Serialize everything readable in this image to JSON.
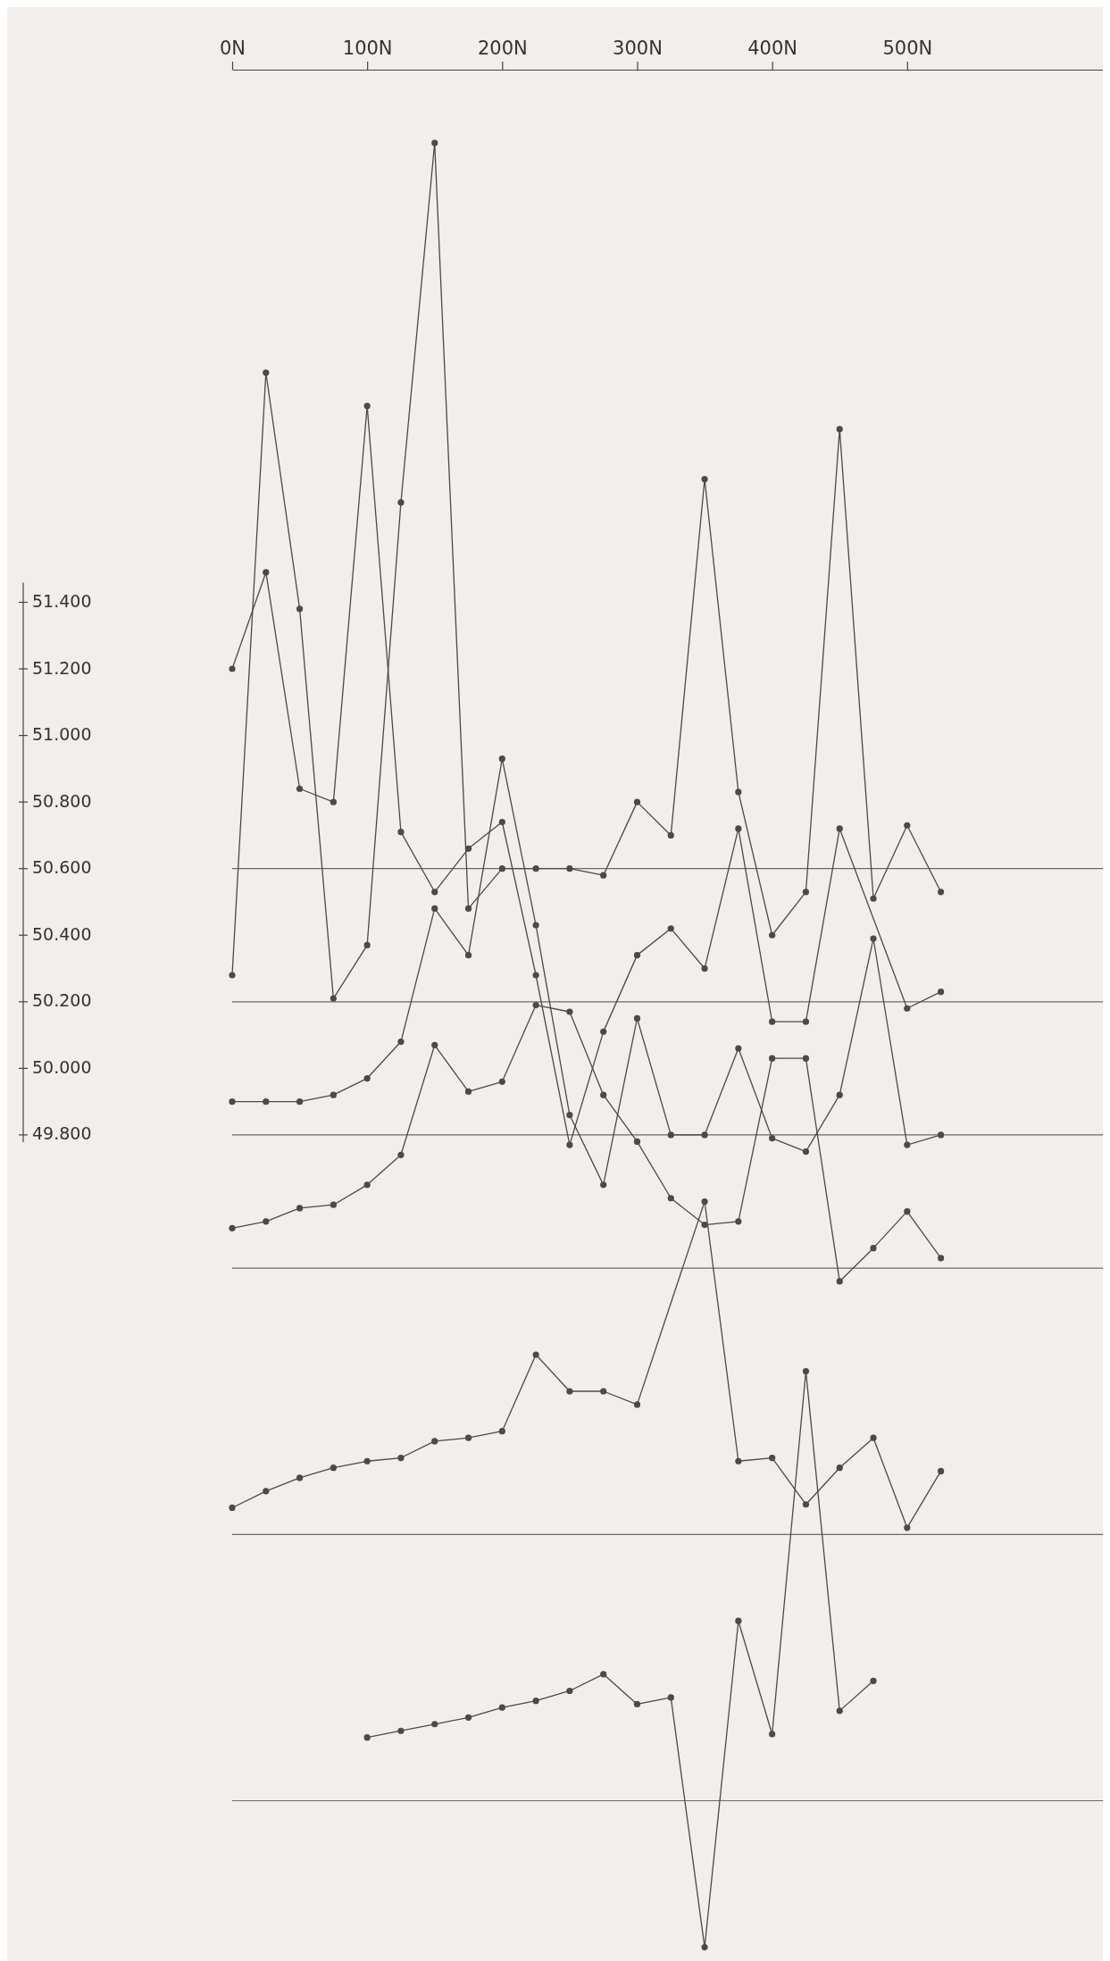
{
  "chart_data": {
    "type": "line",
    "xlim": [
      0,
      645
    ],
    "xticks": [
      {
        "value": 0,
        "label": "0N"
      },
      {
        "value": 100,
        "label": "100N"
      },
      {
        "value": 200,
        "label": "200N"
      },
      {
        "value": 300,
        "label": "300N"
      },
      {
        "value": 400,
        "label": "400N"
      },
      {
        "value": 500,
        "label": "500N"
      }
    ],
    "ylim": [
      47340,
      53000
    ],
    "yticks": [
      {
        "value": 51400,
        "label": "51.400"
      },
      {
        "value": 51200,
        "label": "51.200"
      },
      {
        "value": 51000,
        "label": "51.000"
      },
      {
        "value": 50800,
        "label": "50.800"
      },
      {
        "value": 50600,
        "label": "50.600"
      },
      {
        "value": 50400,
        "label": "50.400"
      },
      {
        "value": 50200,
        "label": "50.200"
      },
      {
        "value": 50000,
        "label": "50.000"
      },
      {
        "value": 49800,
        "label": "49.800"
      }
    ],
    "marker": "circle",
    "series": [
      {
        "color": "#4a4a4a",
        "x": [
          0,
          25,
          50,
          75,
          100,
          125,
          150,
          175,
          200,
          225,
          250,
          275,
          300,
          325,
          350,
          375,
          400,
          425,
          450,
          475,
          500,
          525
        ],
        "values": [
          50280,
          52090,
          51380,
          50210,
          50370,
          51700,
          52780,
          50480,
          50600,
          50600,
          50600,
          50580,
          50800,
          50700,
          51770,
          50830,
          50400,
          50530,
          51920,
          50510,
          50730,
          50530
        ]
      },
      {
        "color": "#4a4a4a",
        "x": [
          0,
          25,
          50,
          75,
          100,
          125,
          150,
          175,
          200,
          225,
          250,
          275,
          300,
          325,
          350,
          375,
          400,
          425,
          450,
          500,
          525
        ],
        "values": [
          51200,
          51490,
          50840,
          50800,
          51990,
          50710,
          50530,
          50660,
          50740,
          50280,
          49770,
          50110,
          50340,
          50420,
          50300,
          50720,
          50140,
          50140,
          50720,
          50180,
          50230
        ]
      },
      {
        "color": "#4a4a4a",
        "x": [
          0,
          25,
          50,
          75,
          100,
          125,
          150,
          175,
          200,
          225,
          250,
          275,
          300,
          325,
          350,
          375,
          400,
          425,
          450,
          475,
          500,
          525
        ],
        "values": [
          49900,
          49900,
          49900,
          49920,
          49970,
          50080,
          50480,
          50340,
          50930,
          50430,
          49860,
          49650,
          50150,
          49800,
          49800,
          50060,
          49790,
          49750,
          49920,
          50390,
          49770,
          49800
        ]
      },
      {
        "color": "#4a4a4a",
        "x": [
          0,
          25,
          50,
          75,
          100,
          125,
          150,
          175,
          200,
          225,
          250,
          275,
          300,
          325,
          350,
          375,
          400,
          425,
          450,
          475,
          500,
          525
        ],
        "values": [
          49520,
          49540,
          49580,
          49590,
          49650,
          49740,
          50070,
          49930,
          49960,
          50190,
          50170,
          49920,
          49780,
          49610,
          49530,
          49540,
          50030,
          50030,
          49360,
          49460,
          49570,
          49430
        ]
      },
      {
        "color": "#4a4a4a",
        "x": [
          0,
          25,
          50,
          75,
          100,
          125,
          150,
          175,
          200,
          225,
          250,
          275,
          300,
          350,
          375,
          400,
          425,
          450,
          475,
          500,
          525
        ],
        "values": [
          48680,
          48730,
          48770,
          48800,
          48820,
          48830,
          48880,
          48890,
          48910,
          49140,
          49030,
          49030,
          48990,
          49600,
          48820,
          48830,
          48690,
          48800,
          48890,
          48620,
          48790
        ]
      },
      {
        "color": "#4a4a4a",
        "x": [
          100,
          125,
          150,
          175,
          200,
          225,
          250,
          275,
          300,
          325,
          350,
          375,
          400,
          425,
          450,
          475
        ],
        "values": [
          47990,
          48010,
          48030,
          48050,
          48080,
          48100,
          48130,
          48180,
          48090,
          48110,
          47360,
          48340,
          48000,
          49090,
          48070,
          48160
        ]
      }
    ],
    "ref_lines": [
      {
        "axis": "y",
        "value": 50600,
        "color": "#6a6a6a"
      },
      {
        "axis": "y",
        "value": 50200,
        "color": "#6a6a6a"
      },
      {
        "axis": "y",
        "value": 49800,
        "color": "#6a6a6a"
      },
      {
        "axis": "y",
        "value": 49400,
        "color": "#6a6a6a"
      },
      {
        "axis": "y",
        "value": 48600,
        "color": "#6a6a6a"
      },
      {
        "axis": "y",
        "value": 47800,
        "color": "#6a6a6a"
      }
    ]
  }
}
